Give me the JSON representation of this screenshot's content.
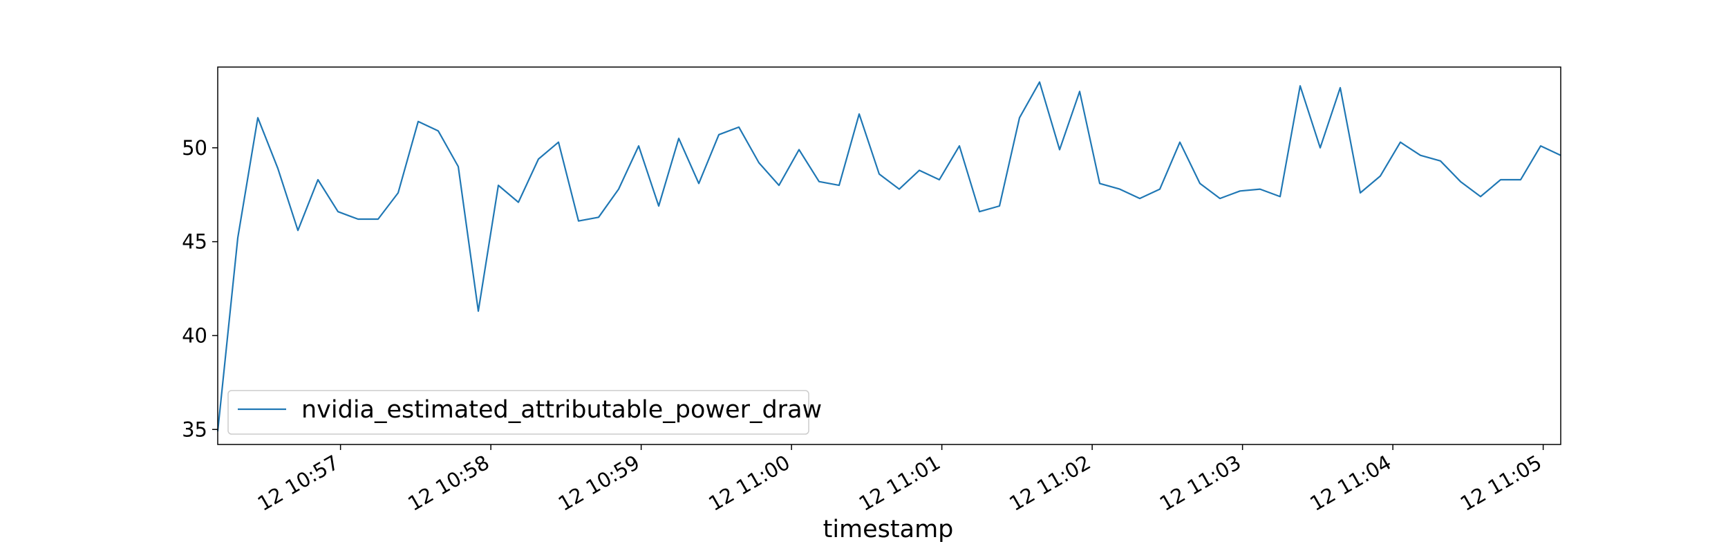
{
  "chart_data": {
    "type": "line",
    "title": "",
    "xlabel": "timestamp",
    "ylabel": "",
    "x_tick_labels": [
      "12 10:57",
      "12 10:58",
      "12 10:59",
      "12 11:00",
      "12 11:01",
      "12 11:02",
      "12 11:03",
      "12 11:04",
      "12 11:05"
    ],
    "x_tick_times_sec": [
      0,
      60,
      120,
      180,
      240,
      300,
      360,
      420,
      480
    ],
    "y_ticks": [
      35,
      40,
      45,
      50
    ],
    "ylim": [
      34.2,
      54.3
    ],
    "grid": false,
    "legend_position": "lower-left",
    "series": [
      {
        "name": "nvidia_estimated_attributable_power_draw",
        "color": "#1f77b4",
        "x_sec": [
          -49,
          -41,
          -33,
          -25,
          -17,
          -9,
          -1,
          7,
          15,
          23,
          31,
          39,
          47,
          55,
          63,
          71,
          79,
          87,
          95,
          103,
          111,
          119,
          127,
          135,
          143,
          151,
          159,
          167,
          175,
          183,
          191,
          199,
          207,
          215,
          223,
          231,
          239,
          247,
          255,
          263,
          271,
          279,
          287,
          295,
          303,
          311,
          319,
          327,
          335,
          343,
          351,
          359,
          367,
          375,
          383,
          391,
          399,
          407,
          415,
          423,
          431,
          439,
          447,
          455,
          463,
          471,
          479,
          487
        ],
        "values": [
          34.9,
          45.2,
          51.6,
          48.9,
          45.6,
          48.3,
          46.6,
          46.2,
          46.2,
          47.6,
          51.4,
          50.9,
          49.0,
          41.3,
          48.0,
          47.1,
          49.4,
          50.3,
          46.1,
          46.3,
          47.8,
          50.1,
          46.9,
          50.5,
          48.1,
          50.7,
          51.1,
          49.2,
          48.0,
          49.9,
          48.2,
          48.0,
          51.8,
          48.6,
          47.8,
          48.8,
          48.3,
          50.1,
          46.6,
          46.9,
          51.6,
          53.5,
          49.9,
          53.0,
          48.1,
          47.8,
          47.3,
          47.8,
          50.3,
          48.1,
          47.3,
          47.7,
          47.8,
          47.4,
          53.3,
          50.0,
          53.2,
          47.6,
          48.5,
          50.3,
          49.6,
          49.3,
          48.2,
          47.4,
          48.3,
          48.3,
          50.1,
          49.6
        ]
      }
    ]
  }
}
